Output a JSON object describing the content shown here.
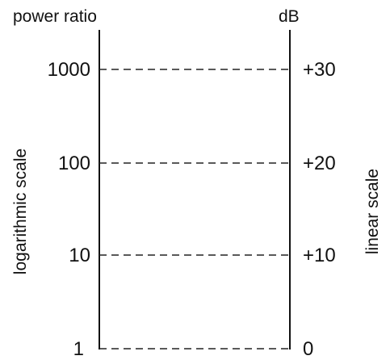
{
  "headers": {
    "left": "power ratio",
    "right": "dB"
  },
  "side_labels": {
    "left": "logarithmic scale",
    "right": "linear scale"
  },
  "levels": [
    {
      "power_ratio": "1000",
      "db": "+30"
    },
    {
      "power_ratio": "100",
      "db": "+20"
    },
    {
      "power_ratio": "10",
      "db": "+10"
    },
    {
      "power_ratio": "1",
      "db": "0"
    }
  ],
  "colors": {
    "ink": "#111111",
    "background": "#ffffff"
  }
}
